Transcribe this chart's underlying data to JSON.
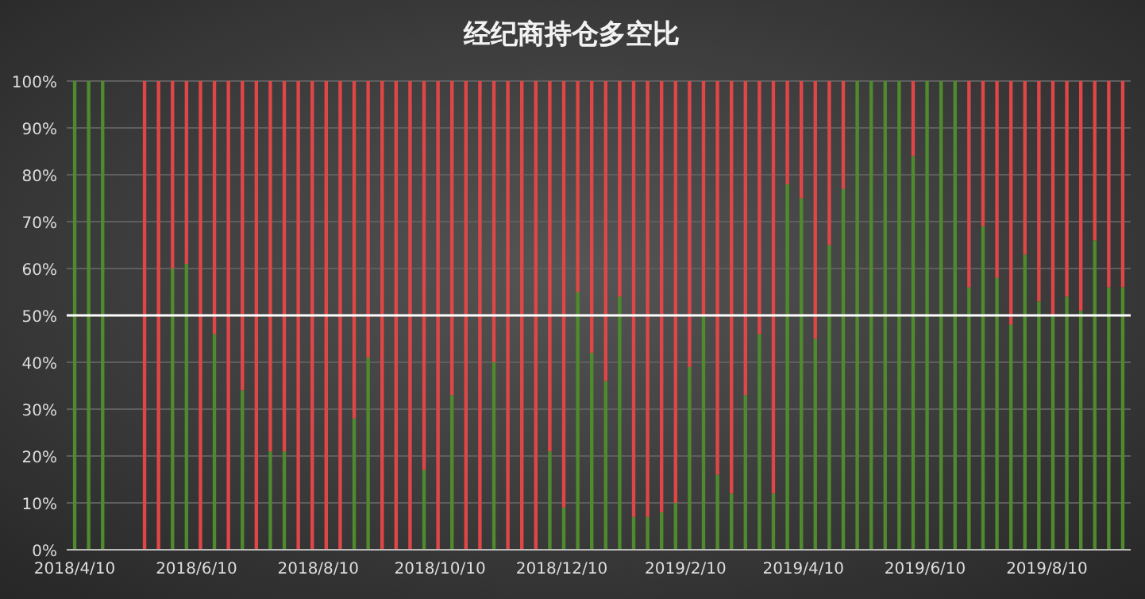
{
  "chart_data": {
    "type": "bar",
    "stacked": true,
    "title": "经纪商持仓多空比",
    "x": [
      "2018-04-10",
      "2018-04-17",
      "2018-04-24",
      "2018-05-01",
      "2018-05-08",
      "2018-05-15",
      "2018-05-22",
      "2018-05-29",
      "2018-06-05",
      "2018-06-12",
      "2018-06-19",
      "2018-06-26",
      "2018-07-03",
      "2018-07-10",
      "2018-07-17",
      "2018-07-24",
      "2018-07-31",
      "2018-08-07",
      "2018-08-14",
      "2018-08-21",
      "2018-08-28",
      "2018-09-04",
      "2018-09-11",
      "2018-09-18",
      "2018-09-25",
      "2018-10-02",
      "2018-10-09",
      "2018-10-16",
      "2018-10-23",
      "2018-10-30",
      "2018-11-06",
      "2018-11-13",
      "2018-11-20",
      "2018-11-27",
      "2018-12-04",
      "2018-12-11",
      "2018-12-18",
      "2018-12-25",
      "2019-01-01",
      "2019-01-08",
      "2019-01-15",
      "2019-01-22",
      "2019-01-29",
      "2019-02-05",
      "2019-02-12",
      "2019-02-19",
      "2019-02-26",
      "2019-03-05",
      "2019-03-12",
      "2019-03-19",
      "2019-03-26",
      "2019-04-02",
      "2019-04-09",
      "2019-04-16",
      "2019-04-23",
      "2019-04-30",
      "2019-05-07",
      "2019-05-14",
      "2019-05-21",
      "2019-05-28",
      "2019-06-04",
      "2019-06-11",
      "2019-06-18",
      "2019-06-25",
      "2019-07-02",
      "2019-07-09",
      "2019-07-16",
      "2019-07-23",
      "2019-07-30",
      "2019-08-06",
      "2019-08-13",
      "2019-08-20",
      "2019-08-27",
      "2019-09-03",
      "2019-09-10",
      "2019-09-17"
    ],
    "series": [
      {
        "color": "#4f8a2c",
        "values": [
          100,
          100,
          100,
          null,
          null,
          0,
          0,
          60,
          61,
          0,
          46,
          0,
          34,
          0,
          21,
          21,
          0,
          0,
          0,
          0,
          28,
          41,
          0,
          0,
          0,
          17,
          0,
          33,
          0,
          0,
          40,
          0,
          0,
          0,
          21,
          9,
          55,
          42,
          36,
          54,
          7,
          7,
          8,
          10,
          39,
          50,
          16,
          12,
          33,
          46,
          12,
          78,
          75,
          45,
          65,
          77,
          100,
          100,
          100,
          100,
          84,
          100,
          100,
          100,
          56,
          69,
          58,
          48,
          63,
          53,
          50,
          54,
          51,
          66,
          56,
          56
        ]
      },
      {
        "color": "#e04646",
        "values": [
          0,
          0,
          0,
          null,
          null,
          100,
          100,
          40,
          39,
          100,
          54,
          100,
          66,
          100,
          79,
          79,
          100,
          100,
          100,
          100,
          72,
          59,
          100,
          100,
          100,
          83,
          100,
          67,
          100,
          100,
          60,
          100,
          100,
          100,
          79,
          91,
          45,
          58,
          64,
          46,
          93,
          93,
          92,
          90,
          61,
          50,
          84,
          88,
          67,
          54,
          88,
          22,
          25,
          55,
          35,
          23,
          0,
          0,
          0,
          0,
          16,
          0,
          0,
          0,
          44,
          31,
          42,
          52,
          37,
          47,
          50,
          46,
          49,
          34,
          44,
          44
        ]
      }
    ],
    "xlim": [
      "2018-04-06",
      "2019-09-21"
    ],
    "xticks": [
      {
        "value": "2018-04-10",
        "label": "2018/4/10"
      },
      {
        "value": "2018-06-10",
        "label": "2018/6/10"
      },
      {
        "value": "2018-08-10",
        "label": "2018/8/10"
      },
      {
        "value": "2018-10-10",
        "label": "2018/10/10"
      },
      {
        "value": "2018-12-10",
        "label": "2018/12/10"
      },
      {
        "value": "2019-02-10",
        "label": "2019/2/10"
      },
      {
        "value": "2019-04-10",
        "label": "2019/4/10"
      },
      {
        "value": "2019-06-10",
        "label": "2019/6/10"
      },
      {
        "value": "2019-08-10",
        "label": "2019/8/10"
      }
    ],
    "ylim": [
      0,
      100
    ],
    "yticks": [
      {
        "value": 0,
        "label": "0%"
      },
      {
        "value": 10,
        "label": "10%"
      },
      {
        "value": 20,
        "label": "20%"
      },
      {
        "value": 30,
        "label": "30%"
      },
      {
        "value": 40,
        "label": "40%"
      },
      {
        "value": 50,
        "label": "50%"
      },
      {
        "value": 60,
        "label": "60%"
      },
      {
        "value": 70,
        "label": "70%"
      },
      {
        "value": 80,
        "label": "80%"
      },
      {
        "value": 90,
        "label": "90%"
      },
      {
        "value": 100,
        "label": "100%"
      }
    ],
    "grid": "y",
    "ref_lines": [
      {
        "axis": "y",
        "value": 50,
        "color": "#ffffff"
      }
    ]
  }
}
